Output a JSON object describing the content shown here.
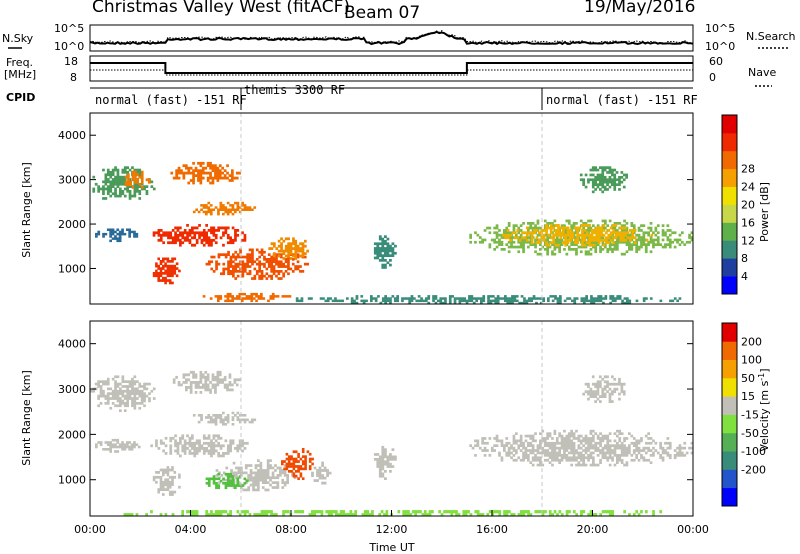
{
  "header": {
    "title": "Christmas Valley West (fitACF)",
    "beam": "Beam 07",
    "date": "19/May/2016"
  },
  "nsky_panel": {
    "left_label": "N.Sky",
    "right_label": "N.Search",
    "y_top": "10^5",
    "y_bottom": "10^0",
    "y_top_right": "10^5",
    "y_bottom_right": "10^0"
  },
  "freq_panel": {
    "left_label_1": "Freq.",
    "left_label_2": "[MHz]",
    "right_label": "Nave",
    "y_top": "18",
    "y_bottom": "8",
    "y_top_right": "60",
    "y_bottom_right": "0"
  },
  "cpid": {
    "label": "CPID",
    "segments": [
      {
        "start_h": 0,
        "end_h": 6,
        "text": "normal (fast) -151 RF"
      },
      {
        "start_h": 6,
        "end_h": 18,
        "text": "themis 3300 RF"
      },
      {
        "start_h": 18,
        "end_h": 24,
        "text": "normal (fast) -151 RF"
      }
    ]
  },
  "chart_data": [
    {
      "type": "heatmap",
      "name": "power",
      "ylabel": "Slant Range [km]",
      "ylim": [
        200,
        4500
      ],
      "yticks": [
        "1000",
        "2000",
        "3000",
        "4000"
      ],
      "colorbar": {
        "label": "Power [dB]",
        "ticks": [
          "4",
          "8",
          "12",
          "16",
          "20",
          "24",
          "28"
        ],
        "colors": [
          "#0000ff",
          "#1f3fa0",
          "#3a8c7a",
          "#5fb04a",
          "#c8d64a",
          "#f0e000",
          "#f5a000",
          "#f06a00",
          "#f02a00",
          "#e00000"
        ]
      },
      "regions": [
        {
          "t0": 0.0,
          "t1": 2.6,
          "r0": 2500,
          "r1": 3300,
          "c": "#4a9a5a"
        },
        {
          "t0": 1.2,
          "t1": 2.4,
          "r0": 2800,
          "r1": 3200,
          "c": "#f07a00"
        },
        {
          "t0": 0.2,
          "t1": 2.0,
          "r0": 1600,
          "r1": 1900,
          "c": "#2a6a9a"
        },
        {
          "t0": 3.2,
          "t1": 6.0,
          "r0": 2900,
          "r1": 3400,
          "c": "#f06a00"
        },
        {
          "t0": 2.4,
          "t1": 6.4,
          "r0": 1500,
          "r1": 2000,
          "c": "#f02a00"
        },
        {
          "t0": 4.0,
          "t1": 6.6,
          "r0": 2200,
          "r1": 2500,
          "c": "#f07a00"
        },
        {
          "t0": 2.5,
          "t1": 3.6,
          "r0": 650,
          "r1": 1300,
          "c": "#f03000"
        },
        {
          "t0": 4.6,
          "t1": 8.8,
          "r0": 750,
          "r1": 1450,
          "c": "#f05000"
        },
        {
          "t0": 7.0,
          "t1": 8.8,
          "r0": 1200,
          "r1": 1700,
          "c": "#f08a00"
        },
        {
          "t0": 11.3,
          "t1": 12.2,
          "r0": 1000,
          "r1": 1800,
          "c": "#3a8c7a"
        },
        {
          "t0": 15.0,
          "t1": 24.0,
          "r0": 1300,
          "r1": 2100,
          "c": "#7ab848"
        },
        {
          "t0": 16.4,
          "t1": 22.5,
          "r0": 1500,
          "r1": 2000,
          "c": "#f0b000"
        },
        {
          "t0": 19.5,
          "t1": 21.4,
          "r0": 2700,
          "r1": 3300,
          "c": "#4a9a5a"
        },
        {
          "t0": 4.2,
          "t1": 8.0,
          "r0": 250,
          "r1": 450,
          "c": "#f06a00"
        },
        {
          "t0": 8.0,
          "t1": 24.0,
          "r0": 200,
          "r1": 400,
          "c": "#3a8c7a"
        }
      ]
    },
    {
      "type": "heatmap",
      "name": "velocity",
      "ylabel": "Slant Range [km]",
      "xlabel": "Time UT",
      "xticks": [
        "00:00",
        "04:00",
        "08:00",
        "12:00",
        "16:00",
        "20:00",
        "00:00"
      ],
      "ylim": [
        200,
        4500
      ],
      "yticks": [
        "1000",
        "2000",
        "3000",
        "4000"
      ],
      "colorbar": {
        "label": "Velocity [m s",
        "label_sup": "-1",
        "label_end": "]",
        "ticks": [
          "200",
          "100",
          "50",
          "15",
          "-15",
          "-50",
          "-100",
          "-200"
        ],
        "colors": [
          "#0000ff",
          "#2255cc",
          "#3a8c7a",
          "#55b055",
          "#80e040",
          "#c0c0b8",
          "#f0e000",
          "#f5a000",
          "#f06a00",
          "#e00000"
        ]
      },
      "regions": [
        {
          "t0": 0.0,
          "t1": 2.6,
          "r0": 2500,
          "r1": 3300,
          "c": "#c0c0b8"
        },
        {
          "t0": 0.2,
          "t1": 2.0,
          "r0": 1600,
          "r1": 1900,
          "c": "#c0c0b8"
        },
        {
          "t0": 3.2,
          "t1": 6.0,
          "r0": 2900,
          "r1": 3400,
          "c": "#c0c0b8"
        },
        {
          "t0": 2.4,
          "t1": 6.4,
          "r0": 1500,
          "r1": 2000,
          "c": "#c0c0b8"
        },
        {
          "t0": 4.0,
          "t1": 6.6,
          "r0": 2200,
          "r1": 2500,
          "c": "#c0c0b8"
        },
        {
          "t0": 2.5,
          "t1": 3.6,
          "r0": 650,
          "r1": 1300,
          "c": "#c0c0b8"
        },
        {
          "t0": 5.0,
          "t1": 8.2,
          "r0": 750,
          "r1": 1450,
          "c": "#c0c0b8"
        },
        {
          "t0": 4.6,
          "t1": 6.3,
          "r0": 800,
          "r1": 1150,
          "c": "#55c040"
        },
        {
          "t0": 7.6,
          "t1": 8.9,
          "r0": 1000,
          "r1": 1700,
          "c": "#f04a00"
        },
        {
          "t0": 8.8,
          "t1": 9.6,
          "r0": 900,
          "r1": 1400,
          "c": "#c0c0b8"
        },
        {
          "t0": 11.3,
          "t1": 12.2,
          "r0": 1000,
          "r1": 1800,
          "c": "#c0c0b8"
        },
        {
          "t0": 15.0,
          "t1": 24.0,
          "r0": 1300,
          "r1": 2100,
          "c": "#c0c0b8"
        },
        {
          "t0": 19.5,
          "t1": 21.4,
          "r0": 2700,
          "r1": 3300,
          "c": "#c0c0b8"
        },
        {
          "t0": 0.0,
          "t1": 24.0,
          "r0": 200,
          "r1": 330,
          "c": "#80e040"
        }
      ]
    }
  ],
  "colors": {
    "gridline": "#c8c8c8"
  }
}
